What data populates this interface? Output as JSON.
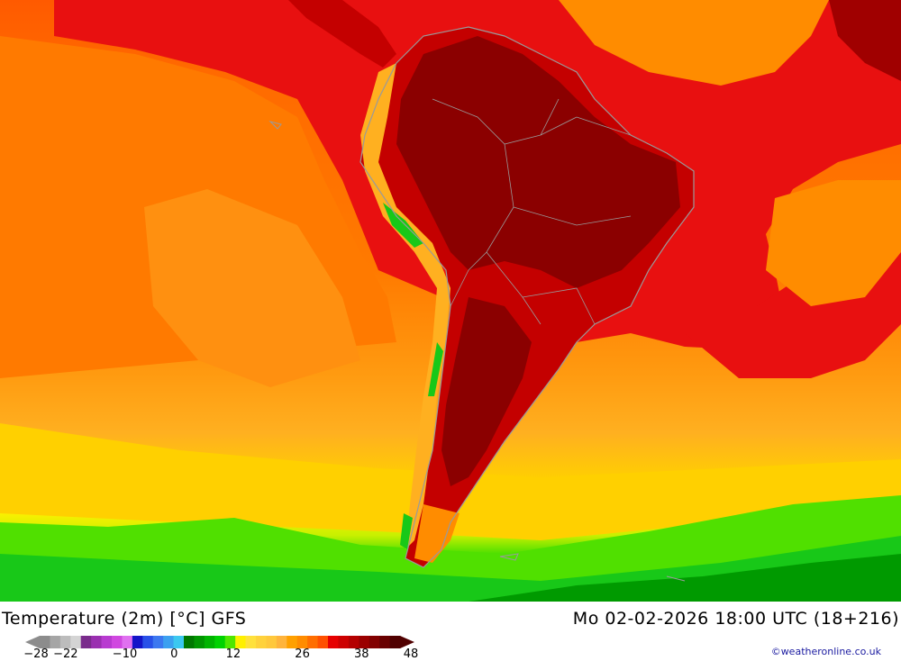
{
  "map": {
    "region": "South America",
    "land_outline_color": "#9a9a9a",
    "field_colors": {
      "very_hot": "#8b0000",
      "hot": "#c40000",
      "warm_red": "#e81010",
      "warm_orange": "#ff6a00",
      "orange": "#ff8c00",
      "light_orange": "#ffa520",
      "yellow": "#fff000",
      "lime": "#60e000",
      "green": "#18c818",
      "dark_green": "#009a00"
    }
  },
  "header": {
    "title": "Temperature (2m) [°C] GFS",
    "datetime": "Mo 02-02-2026 18:00 UTC (18+216)"
  },
  "legend": {
    "ticks": [
      {
        "label": "-28",
        "value": -28
      },
      {
        "label": "-22",
        "value": -22
      },
      {
        "label": "-10",
        "value": -10
      },
      {
        "label": "0",
        "value": 0
      },
      {
        "label": "12",
        "value": 12
      },
      {
        "label": "26",
        "value": 26
      },
      {
        "label": "38",
        "value": 38
      },
      {
        "label": "48",
        "value": 48
      }
    ],
    "colors": [
      "#8c8c8c",
      "#a5a5a5",
      "#bcbcbc",
      "#d4d4d4",
      "#7a2b8c",
      "#9a2fb0",
      "#b83ad0",
      "#d048e0",
      "#e070f0",
      "#1414c8",
      "#2850e8",
      "#3c78f0",
      "#3ca0f0",
      "#3cc8f0",
      "#007800",
      "#009600",
      "#00b400",
      "#00d200",
      "#50e600",
      "#fff000",
      "#ffe13c",
      "#ffd23c",
      "#ffc83c",
      "#ffb43c",
      "#ffa000",
      "#ff8c00",
      "#ff6e00",
      "#ff5000",
      "#e60000",
      "#cd0000",
      "#b40000",
      "#9b0000",
      "#820000",
      "#690000",
      "#500000"
    ]
  },
  "credit": "©weatheronline.co.uk"
}
